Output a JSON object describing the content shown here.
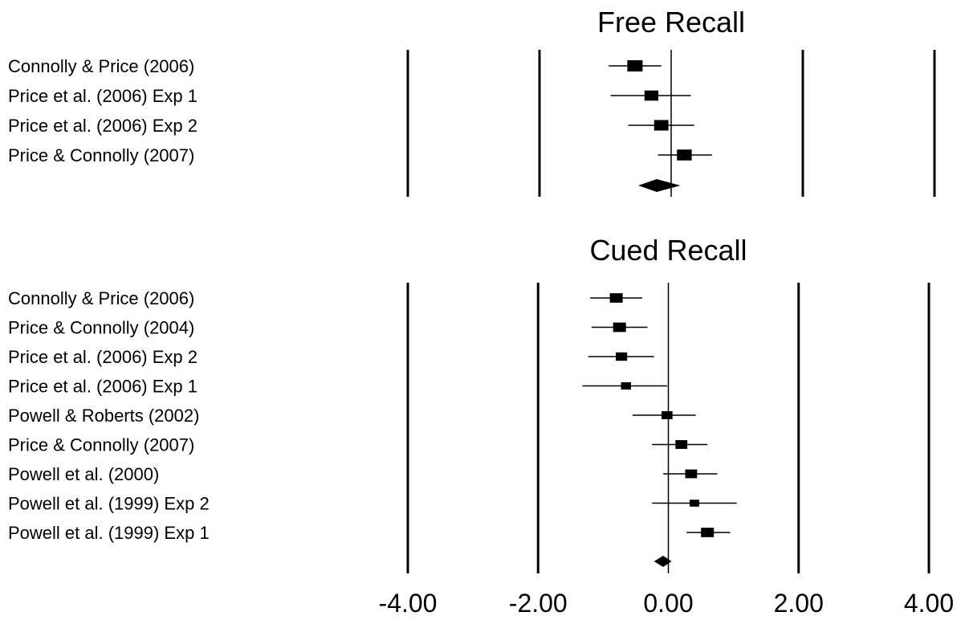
{
  "chart_data": [
    {
      "type": "forest",
      "title": "Free Recall",
      "xlim": [
        -4,
        4
      ],
      "studies": [
        {
          "label": "Connolly & Price (2006)",
          "estimate": -0.55,
          "ci": [
            -0.95,
            -0.15
          ],
          "weight": 1.0
        },
        {
          "label": "Price et al. (2006) Exp 1",
          "estimate": -0.3,
          "ci": [
            -0.92,
            0.3
          ],
          "weight": 0.85
        },
        {
          "label": "Price et al. (2006) Exp 2",
          "estimate": -0.15,
          "ci": [
            -0.65,
            0.35
          ],
          "weight": 0.9
        },
        {
          "label": "Price & Connolly (2007)",
          "estimate": 0.2,
          "ci": [
            -0.2,
            0.62
          ],
          "weight": 0.95
        }
      ],
      "summary": {
        "estimate": -0.22,
        "ci": [
          -0.5,
          0.14
        ]
      }
    },
    {
      "type": "forest",
      "title": "Cued Recall",
      "xlim": [
        -4,
        4
      ],
      "studies": [
        {
          "label": "Connolly & Price (2006)",
          "estimate": -0.8,
          "ci": [
            -1.2,
            -0.4
          ],
          "weight": 0.75
        },
        {
          "label": "Price & Connolly (2004)",
          "estimate": -0.75,
          "ci": [
            -1.18,
            -0.32
          ],
          "weight": 0.75
        },
        {
          "label": "Price et al. (2006) Exp 2",
          "estimate": -0.72,
          "ci": [
            -1.23,
            -0.22
          ],
          "weight": 0.6
        },
        {
          "label": "Price et al. (2006) Exp 1",
          "estimate": -0.65,
          "ci": [
            -1.32,
            -0.02
          ],
          "weight": 0.45
        },
        {
          "label": "Powell & Roberts (2002)",
          "estimate": -0.02,
          "ci": [
            -0.55,
            0.42
          ],
          "weight": 0.55
        },
        {
          "label": "Price & Connolly (2007)",
          "estimate": 0.2,
          "ci": [
            -0.25,
            0.6
          ],
          "weight": 0.65
        },
        {
          "label": "Powell et al. (2000)",
          "estimate": 0.35,
          "ci": [
            -0.08,
            0.75
          ],
          "weight": 0.65
        },
        {
          "label": "Powell et al. (1999) Exp 2",
          "estimate": 0.4,
          "ci": [
            -0.25,
            1.05
          ],
          "weight": 0.4
        },
        {
          "label": "Powell et al. (1999) Exp 1",
          "estimate": 0.6,
          "ci": [
            0.28,
            0.95
          ],
          "weight": 0.75
        }
      ],
      "summary": {
        "estimate": -0.08,
        "ci": [
          -0.22,
          0.05
        ]
      }
    }
  ],
  "x_axis": {
    "ticks": [
      -4,
      -2,
      0,
      2,
      4
    ],
    "tick_labels": [
      "-4.00",
      "-2.00",
      "0.00",
      "2.00",
      "4.00"
    ]
  }
}
